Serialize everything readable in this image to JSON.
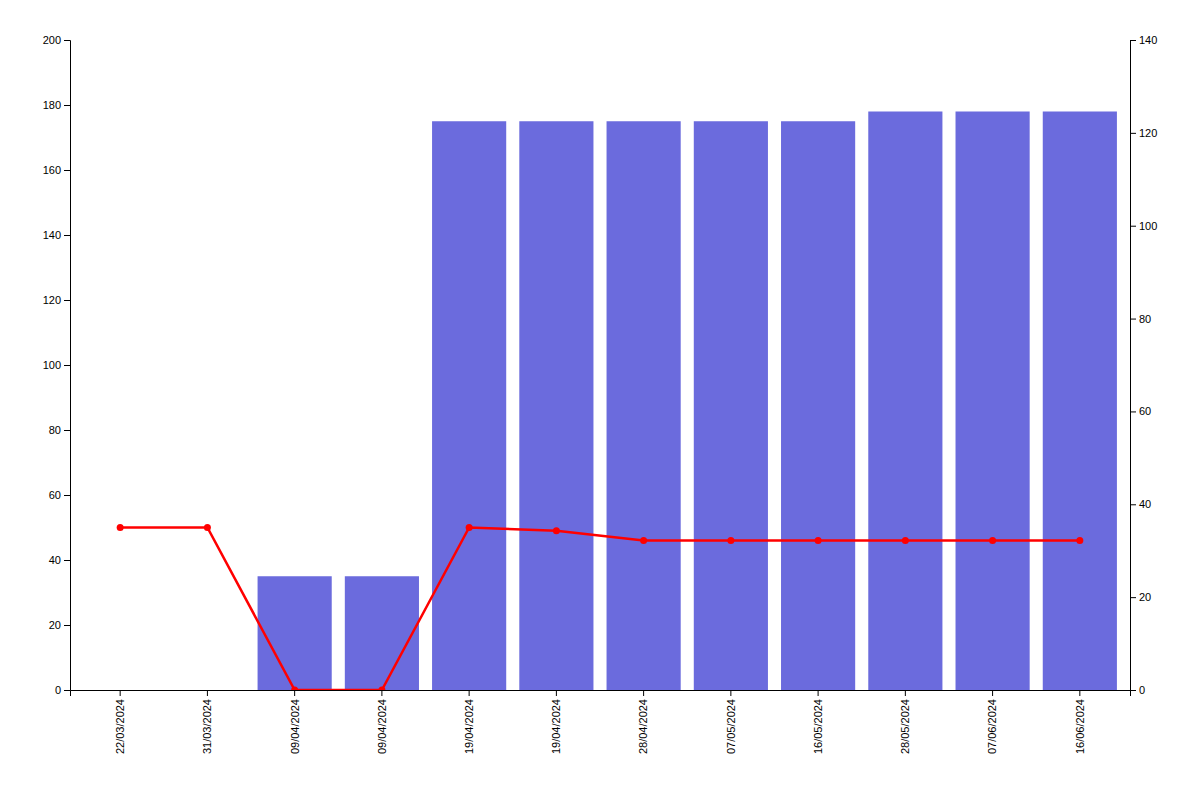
{
  "chart_data": {
    "type": "bar",
    "categories": [
      "22/03/2024",
      "31/03/2024",
      "09/04/2024",
      "09/04/2024",
      "19/04/2024",
      "19/04/2024",
      "28/04/2024",
      "07/05/2024",
      "16/05/2024",
      "28/05/2024",
      "07/06/2024",
      "16/06/2024"
    ],
    "series": [
      {
        "type": "bar",
        "color": "#6b6bdd",
        "values": [
          0,
          0,
          35,
          35,
          175,
          175,
          175,
          175,
          175,
          178,
          178,
          178
        ]
      },
      {
        "type": "line",
        "color": "#ff0000",
        "marker": "circle",
        "values": [
          50,
          50,
          0,
          0,
          50,
          49,
          46,
          46,
          46,
          46,
          46,
          46
        ]
      }
    ],
    "ylim": [
      0,
      200
    ],
    "yticks": [
      0,
      20,
      40,
      60,
      80,
      100,
      120,
      140,
      160,
      180,
      200
    ],
    "y2lim": [
      0,
      140
    ],
    "y2ticks": [
      0,
      20,
      40,
      60,
      80,
      100,
      120,
      140
    ],
    "grid": false
  }
}
